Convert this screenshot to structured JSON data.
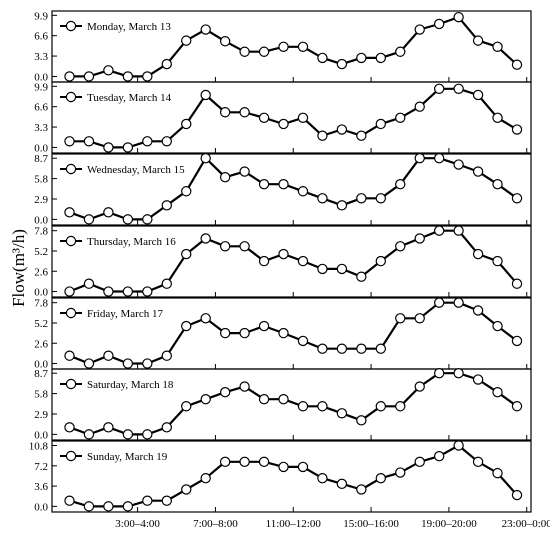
{
  "chart_data": {
    "type": "line",
    "ylabel": "Flow(m³/h)",
    "x_tick_labels": [
      {
        "index": 4,
        "label": "3:00–4:00"
      },
      {
        "index": 8,
        "label": "7:00–8:00"
      },
      {
        "index": 12,
        "label": "11:00–12:00"
      },
      {
        "index": 16,
        "label": "15:00–16:00"
      },
      {
        "index": 20,
        "label": "19:00–20:00"
      },
      {
        "index": 24,
        "label": "23:00–0:00"
      }
    ],
    "x_count": 24,
    "legend_position": "top-left",
    "colors": {
      "line": "#000000",
      "marker_fill": "#ffffff",
      "marker_stroke": "#000000"
    },
    "panels": [
      {
        "name": "Monday, March 13",
        "ylim": [
          -0.9,
          10.6
        ],
        "yticks": [
          "0.0",
          "3.3",
          "6.6",
          "9.9"
        ],
        "ytick_values": [
          0,
          3.3,
          6.6,
          9.9
        ],
        "values": [
          0,
          0,
          1,
          0,
          0,
          2,
          5.8,
          7.6,
          5.7,
          4,
          4,
          4.8,
          4.8,
          3,
          2,
          3,
          3,
          4,
          7.6,
          8.5,
          9.6,
          5.8,
          4.8,
          1.9
        ]
      },
      {
        "name": "Tuesday, March 14",
        "ylim": [
          -0.9,
          10.6
        ],
        "yticks": [
          "0.0",
          "3.3",
          "6.6",
          "9.9"
        ],
        "ytick_values": [
          0,
          3.3,
          6.6,
          9.9
        ],
        "values": [
          1,
          1,
          0,
          0,
          1,
          1,
          3.8,
          8.5,
          5.7,
          5.7,
          4.8,
          3.8,
          4.8,
          1.9,
          2.9,
          1.9,
          3.8,
          4.8,
          6.6,
          9.5,
          9.5,
          8.5,
          4.8,
          2.9
        ]
      },
      {
        "name": "Wednesday, March 15",
        "ylim": [
          -0.8,
          9.3
        ],
        "yticks": [
          "0.0",
          "2.9",
          "5.8",
          "8.7"
        ],
        "ytick_values": [
          0,
          2.9,
          5.8,
          8.7
        ],
        "values": [
          1,
          0,
          1,
          0,
          0,
          2,
          4,
          8.7,
          6,
          6.8,
          5,
          5,
          4,
          3,
          2,
          3,
          3,
          5,
          8.7,
          8.7,
          7.8,
          6.8,
          5,
          3
        ]
      },
      {
        "name": "Thursday, March 16",
        "ylim": [
          -0.7,
          8.4
        ],
        "yticks": [
          "0.0",
          "2.6",
          "5.2",
          "7.8"
        ],
        "ytick_values": [
          0,
          2.6,
          5.2,
          7.8
        ],
        "values": [
          0,
          1,
          0,
          0,
          0,
          1,
          4.8,
          6.8,
          5.8,
          5.8,
          3.9,
          4.8,
          3.9,
          2.9,
          2.9,
          1.9,
          3.9,
          5.8,
          6.8,
          7.8,
          7.8,
          4.8,
          3.9,
          1
        ]
      },
      {
        "name": "Friday, March 17",
        "ylim": [
          -0.7,
          8.4
        ],
        "yticks": [
          "0.0",
          "2.6",
          "5.2",
          "7.8"
        ],
        "ytick_values": [
          0,
          2.6,
          5.2,
          7.8
        ],
        "values": [
          1,
          0,
          1,
          0,
          0,
          1,
          4.8,
          5.8,
          3.9,
          3.9,
          4.8,
          3.9,
          2.9,
          1.9,
          1.9,
          1.9,
          1.9,
          5.8,
          5.8,
          7.8,
          7.8,
          6.8,
          4.8,
          2.9
        ]
      },
      {
        "name": "Saturday, March 18",
        "ylim": [
          -0.8,
          9.3
        ],
        "yticks": [
          "0.0",
          "2.9",
          "5.8",
          "8.7"
        ],
        "ytick_values": [
          0,
          2.9,
          5.8,
          8.7
        ],
        "values": [
          1,
          0,
          1,
          0,
          0,
          1,
          4,
          5,
          6,
          6.8,
          5,
          5,
          4,
          4,
          3,
          2,
          4,
          4,
          6.8,
          8.7,
          8.7,
          7.8,
          6,
          4
        ]
      },
      {
        "name": "Sunday, March 19",
        "ylim": [
          -1.0,
          11.6
        ],
        "yticks": [
          "0.0",
          "3.6",
          "7.2",
          "10.8"
        ],
        "ytick_values": [
          0,
          3.6,
          7.2,
          10.8
        ],
        "values": [
          1,
          0,
          0,
          0,
          1,
          1,
          3,
          5,
          7.9,
          7.9,
          7.9,
          7,
          7,
          5,
          4,
          3,
          5,
          6,
          7.9,
          8.9,
          10.8,
          7.9,
          5.9,
          2
        ]
      }
    ]
  }
}
